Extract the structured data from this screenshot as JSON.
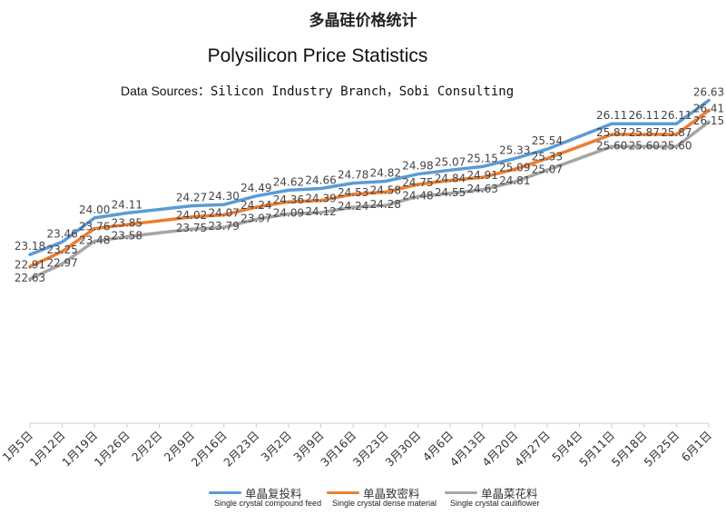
{
  "header": {
    "title_cn": "多晶硅价格统计",
    "title_en": "Polysilicon Price Statistics",
    "source_label": "Data Sources：",
    "source_value": "Silicon Industry Branch，Sobi Consulting"
  },
  "chart_data": {
    "type": "line",
    "categories": [
      "1月5日",
      "1月12日",
      "1月19日",
      "1月26日",
      "2月2日",
      "2月9日",
      "2月16日",
      "2月23日",
      "3月2日",
      "3月9日",
      "3月16日",
      "3月23日",
      "3月30日",
      "4月6日",
      "4月13日",
      "4月20日",
      "4月27日",
      "5月4日",
      "5月11日",
      "5月18日",
      "5月25日",
      "6月1日"
    ],
    "series": [
      {
        "name": "单晶复投料",
        "name_en": "Single crystal compound feed",
        "color": "#5b9bd5",
        "values": [
          23.18,
          23.46,
          24.0,
          24.11,
          null,
          24.27,
          24.3,
          24.49,
          24.62,
          24.66,
          24.78,
          24.82,
          24.98,
          25.07,
          25.15,
          25.33,
          25.54,
          null,
          26.11,
          26.11,
          26.11,
          26.63
        ],
        "labels": [
          "23.18",
          "23.46",
          "24.00",
          "24.11",
          null,
          "24.27",
          "24.30",
          "24.49",
          "24.62",
          "24.66",
          "24.78",
          "24.82",
          "24.98",
          "25.07",
          "25.15",
          "25.33",
          "25.54",
          null,
          "26.11",
          "26.11",
          "26.11",
          "26.63"
        ]
      },
      {
        "name": "单晶致密料",
        "name_en": "Single crystal dense material",
        "color": "#ed7d31",
        "values": [
          22.91,
          23.25,
          23.76,
          23.85,
          null,
          24.02,
          24.07,
          24.24,
          24.36,
          24.39,
          24.53,
          24.58,
          24.75,
          24.84,
          24.91,
          25.09,
          25.33,
          null,
          25.87,
          25.87,
          25.87,
          26.41
        ],
        "labels": [
          "22.91",
          "23.25",
          "23.76",
          "23.85",
          null,
          "24.02",
          "24.07",
          "24.24",
          "24.36",
          "24.39",
          "24.53",
          "24.58",
          "24.75",
          "24.84",
          "24.91",
          "25.09",
          "25.33",
          null,
          "25.87",
          "25.87",
          "25.87",
          "26.41"
        ]
      },
      {
        "name": "单晶菜花料",
        "name_en": "Single crystal cauliflower",
        "color": "#a5a5a5",
        "values": [
          22.63,
          22.97,
          23.48,
          23.58,
          null,
          23.75,
          23.79,
          23.97,
          24.09,
          24.12,
          24.24,
          24.28,
          24.48,
          24.55,
          24.63,
          24.81,
          25.07,
          null,
          25.6,
          25.6,
          25.6,
          26.15
        ],
        "labels": [
          "22.63",
          "22.97",
          "23.48",
          "23.58",
          null,
          "23.75",
          "23.79",
          "23.97",
          "24.09",
          "24.12",
          "24.24",
          "24.28",
          "24.48",
          "24.55",
          "24.63",
          "24.81",
          "25.07",
          null,
          "25.60",
          "25.60",
          "25.60",
          "26.15"
        ]
      }
    ],
    "ylim": [
      19.4,
      27.05
    ],
    "grid": false,
    "legend": "bottom"
  }
}
